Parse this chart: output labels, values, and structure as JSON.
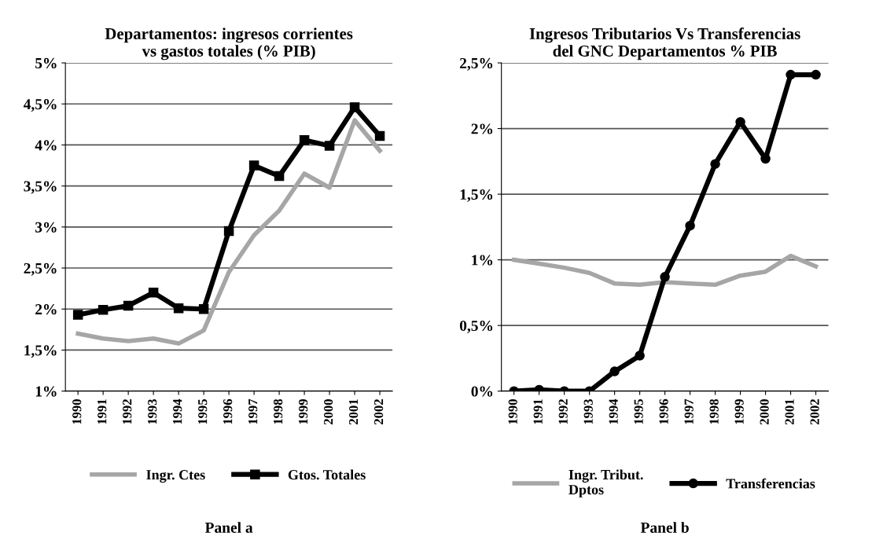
{
  "chart_data": [
    {
      "type": "line",
      "title": "Departamentos: ingresos corrientes\nvs gastos totales (% PIB)",
      "categories": [
        "1990",
        "1991",
        "1992",
        "1993",
        "1994",
        "1995",
        "1996",
        "1997",
        "1998",
        "1999",
        "2000",
        "2001",
        "2002"
      ],
      "series": [
        {
          "name": "Ingr. Ctes",
          "color": "#a6a6a6",
          "marker": "none",
          "values": [
            1.7,
            1.64,
            1.61,
            1.64,
            1.58,
            1.74,
            2.45,
            2.9,
            3.2,
            3.65,
            3.48,
            4.3,
            3.93
          ]
        },
        {
          "name": "Gtos. Totales",
          "color": "#000000",
          "marker": "square",
          "values": [
            1.93,
            1.99,
            2.04,
            2.2,
            2.01,
            2.0,
            2.95,
            3.75,
            3.62,
            4.06,
            3.99,
            4.46,
            4.11
          ]
        }
      ],
      "ylim": [
        1,
        5
      ],
      "yticks": [
        {
          "value": 1,
          "label": "1%"
        },
        {
          "value": 1.5,
          "label": "1,5%"
        },
        {
          "value": 2,
          "label": "2%"
        },
        {
          "value": 2.5,
          "label": "2,5%"
        },
        {
          "value": 3,
          "label": "3%"
        },
        {
          "value": 3.5,
          "label": "3,5%"
        },
        {
          "value": 4,
          "label": "4%"
        },
        {
          "value": 4.5,
          "label": "4,5%"
        },
        {
          "value": 5,
          "label": "5%"
        }
      ],
      "grid": "y",
      "legend": "bottom",
      "annotations": [
        "Panel a"
      ]
    },
    {
      "type": "line",
      "title": "Ingresos Tributarios Vs Transferencias\ndel GNC Departamentos % PIB",
      "categories": [
        "1990",
        "1991",
        "1992",
        "1993",
        "1994",
        "1995",
        "1996",
        "1997",
        "1998",
        "1999",
        "2000",
        "2001",
        "2002"
      ],
      "series": [
        {
          "name": "Ingr. Tribut.\nDptos",
          "color": "#a6a6a6",
          "marker": "none",
          "values": [
            1.0,
            0.97,
            0.94,
            0.9,
            0.82,
            0.81,
            0.83,
            0.82,
            0.81,
            0.88,
            0.91,
            1.03,
            0.95
          ]
        },
        {
          "name": "Transferencias",
          "color": "#000000",
          "marker": "circle",
          "values": [
            0.0,
            0.01,
            0.0,
            0.0,
            0.15,
            0.27,
            0.87,
            1.26,
            1.73,
            2.05,
            1.77,
            2.41,
            2.41
          ]
        }
      ],
      "ylim": [
        0,
        2.5
      ],
      "yticks": [
        {
          "value": 0,
          "label": "0%"
        },
        {
          "value": 0.5,
          "label": "0,5%"
        },
        {
          "value": 1,
          "label": "1%"
        },
        {
          "value": 1.5,
          "label": "1,5%"
        },
        {
          "value": 2,
          "label": "2%"
        },
        {
          "value": 2.5,
          "label": "2,5%"
        }
      ],
      "grid": "y",
      "legend": "bottom",
      "annotations": [
        "Panel b"
      ]
    }
  ]
}
